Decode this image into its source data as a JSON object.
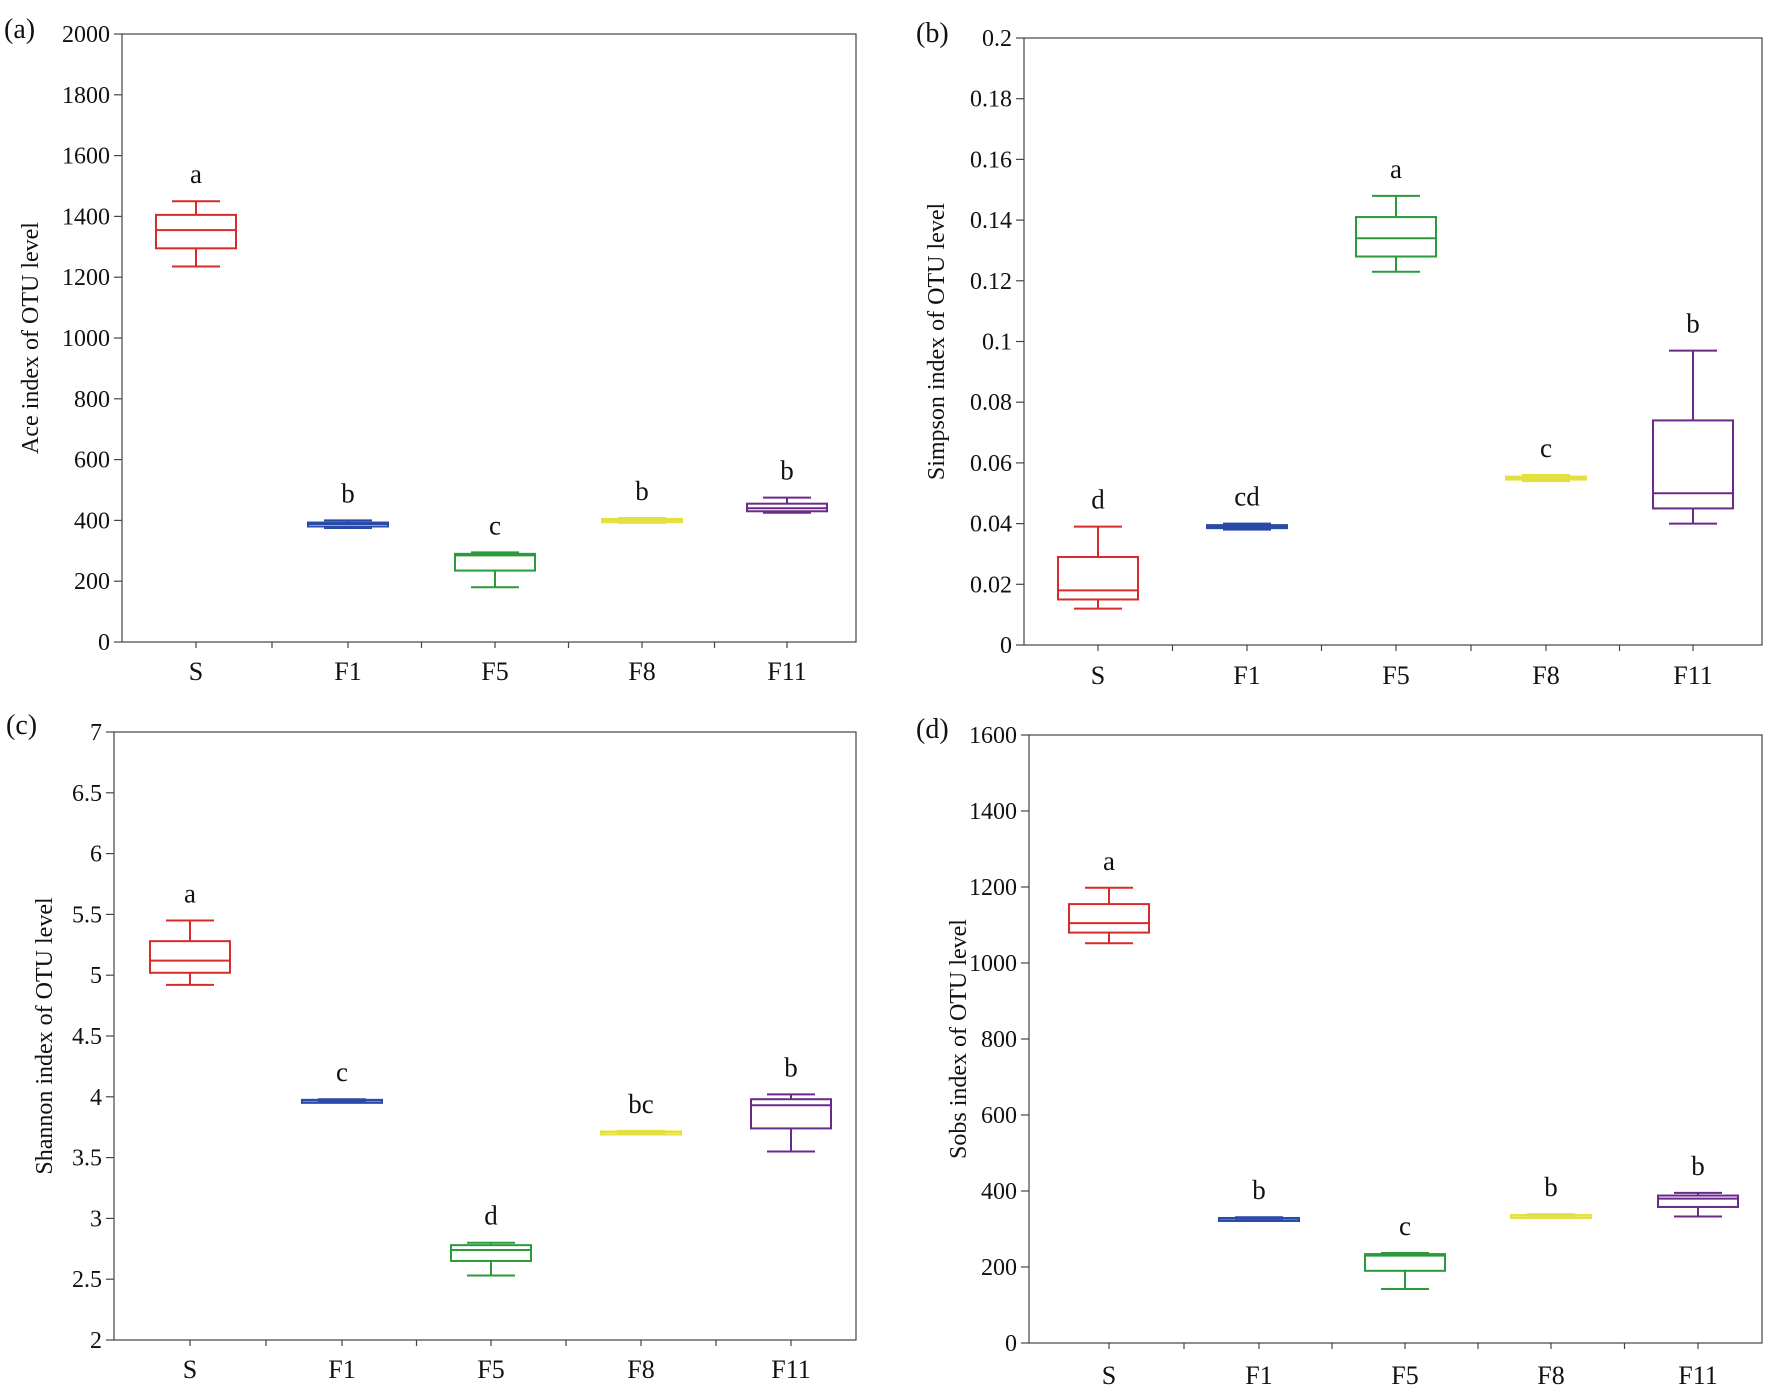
{
  "chart_data": [
    {
      "type": "boxplot",
      "panel": "(a)",
      "ylabel": "Ace index of OTU level",
      "ylim": [
        0,
        2000
      ],
      "yticks": [
        "0",
        "200",
        "400",
        "600",
        "800",
        "1000",
        "1200",
        "1400",
        "1600",
        "1800",
        "2000"
      ],
      "categories": [
        "S",
        "F1",
        "F5",
        "F8",
        "F11"
      ],
      "colors": [
        "#d62b2b",
        "#2a4aa8",
        "#2a9a3a",
        "#e3e040",
        "#6a2a8a"
      ],
      "boxes": [
        {
          "min": 1235,
          "q1": 1295,
          "median": 1355,
          "q3": 1405,
          "max": 1450,
          "label": "a"
        },
        {
          "min": 375,
          "q1": 380,
          "median": 388,
          "q3": 393,
          "max": 400,
          "label": "b"
        },
        {
          "min": 180,
          "q1": 235,
          "median": 285,
          "q3": 290,
          "max": 295,
          "label": "c"
        },
        {
          "min": 392,
          "q1": 394,
          "median": 400,
          "q3": 405,
          "max": 408,
          "label": "b"
        },
        {
          "min": 425,
          "q1": 430,
          "median": 440,
          "q3": 455,
          "max": 475,
          "label": "b"
        }
      ]
    },
    {
      "type": "boxplot",
      "panel": "(b)",
      "ylabel": "Simpson index of OTU level",
      "ylim": [
        0,
        0.2
      ],
      "yticks": [
        "0",
        "0.02",
        "0.04",
        "0.06",
        "0.08",
        "0.1",
        "0.12",
        "0.14",
        "0.16",
        "0.18",
        "0.2"
      ],
      "categories": [
        "S",
        "F1",
        "F5",
        "F8",
        "F11"
      ],
      "colors": [
        "#d62b2b",
        "#2a4aa8",
        "#2a9a3a",
        "#e3e040",
        "#6a2a8a"
      ],
      "boxes": [
        {
          "min": 0.012,
          "q1": 0.015,
          "median": 0.018,
          "q3": 0.029,
          "max": 0.039,
          "label": "d"
        },
        {
          "min": 0.038,
          "q1": 0.0385,
          "median": 0.039,
          "q3": 0.0395,
          "max": 0.04,
          "label": "cd"
        },
        {
          "min": 0.123,
          "q1": 0.128,
          "median": 0.134,
          "q3": 0.141,
          "max": 0.148,
          "label": "a"
        },
        {
          "min": 0.054,
          "q1": 0.0545,
          "median": 0.055,
          "q3": 0.0555,
          "max": 0.056,
          "label": "c"
        },
        {
          "min": 0.04,
          "q1": 0.045,
          "median": 0.05,
          "q3": 0.074,
          "max": 0.097,
          "label": "b"
        }
      ]
    },
    {
      "type": "boxplot",
      "panel": "(c)",
      "ylabel": "Shannon index of OTU level",
      "ylim": [
        2,
        7
      ],
      "yticks": [
        "2",
        "2.5",
        "3",
        "3.5",
        "4",
        "4.5",
        "5",
        "5.5",
        "6",
        "6.5",
        "7"
      ],
      "categories": [
        "S",
        "F1",
        "F5",
        "F8",
        "F11"
      ],
      "colors": [
        "#d62b2b",
        "#2a4aa8",
        "#2a9a3a",
        "#e3e040",
        "#6a2a8a"
      ],
      "boxes": [
        {
          "min": 4.92,
          "q1": 5.02,
          "median": 5.12,
          "q3": 5.28,
          "max": 5.45,
          "label": "a"
        },
        {
          "min": 3.96,
          "q1": 3.965,
          "median": 3.97,
          "q3": 3.975,
          "max": 3.98,
          "label": "c"
        },
        {
          "min": 2.53,
          "q1": 2.65,
          "median": 2.74,
          "q3": 2.78,
          "max": 2.8,
          "label": "d"
        },
        {
          "min": 3.7,
          "q1": 3.705,
          "median": 3.71,
          "q3": 3.715,
          "max": 3.72,
          "label": "bc"
        },
        {
          "min": 3.55,
          "q1": 3.74,
          "median": 3.93,
          "q3": 3.98,
          "max": 4.02,
          "label": "b"
        }
      ]
    },
    {
      "type": "boxplot",
      "panel": "(d)",
      "ylabel": "Sobs index of OTU level",
      "ylim": [
        0,
        1600
      ],
      "yticks": [
        "0",
        "200",
        "400",
        "600",
        "800",
        "1000",
        "1200",
        "1400",
        "1600"
      ],
      "categories": [
        "S",
        "F1",
        "F5",
        "F8",
        "F11"
      ],
      "colors": [
        "#d62b2b",
        "#2a4aa8",
        "#2a9a3a",
        "#e3e040",
        "#6a2a8a"
      ],
      "boxes": [
        {
          "min": 1052,
          "q1": 1080,
          "median": 1105,
          "q3": 1155,
          "max": 1198,
          "label": "a"
        },
        {
          "min": 322,
          "q1": 324,
          "median": 327,
          "q3": 329,
          "max": 331,
          "label": "b"
        },
        {
          "min": 142,
          "q1": 190,
          "median": 230,
          "q3": 234,
          "max": 237,
          "label": "c"
        },
        {
          "min": 330,
          "q1": 332,
          "median": 335,
          "q3": 337,
          "max": 339,
          "label": "b"
        },
        {
          "min": 333,
          "q1": 358,
          "median": 380,
          "q3": 388,
          "max": 395,
          "label": "b"
        }
      ]
    }
  ]
}
